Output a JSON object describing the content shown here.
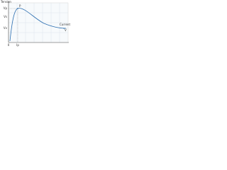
{
  "axis_labels": {
    "y": "Tension",
    "x": "Current"
  },
  "y_labels": [
    "Vp",
    "Vs",
    "Vv"
  ],
  "x_labels": [
    "0",
    "Ip"
  ],
  "points": [
    "P",
    "V"
  ]
}
